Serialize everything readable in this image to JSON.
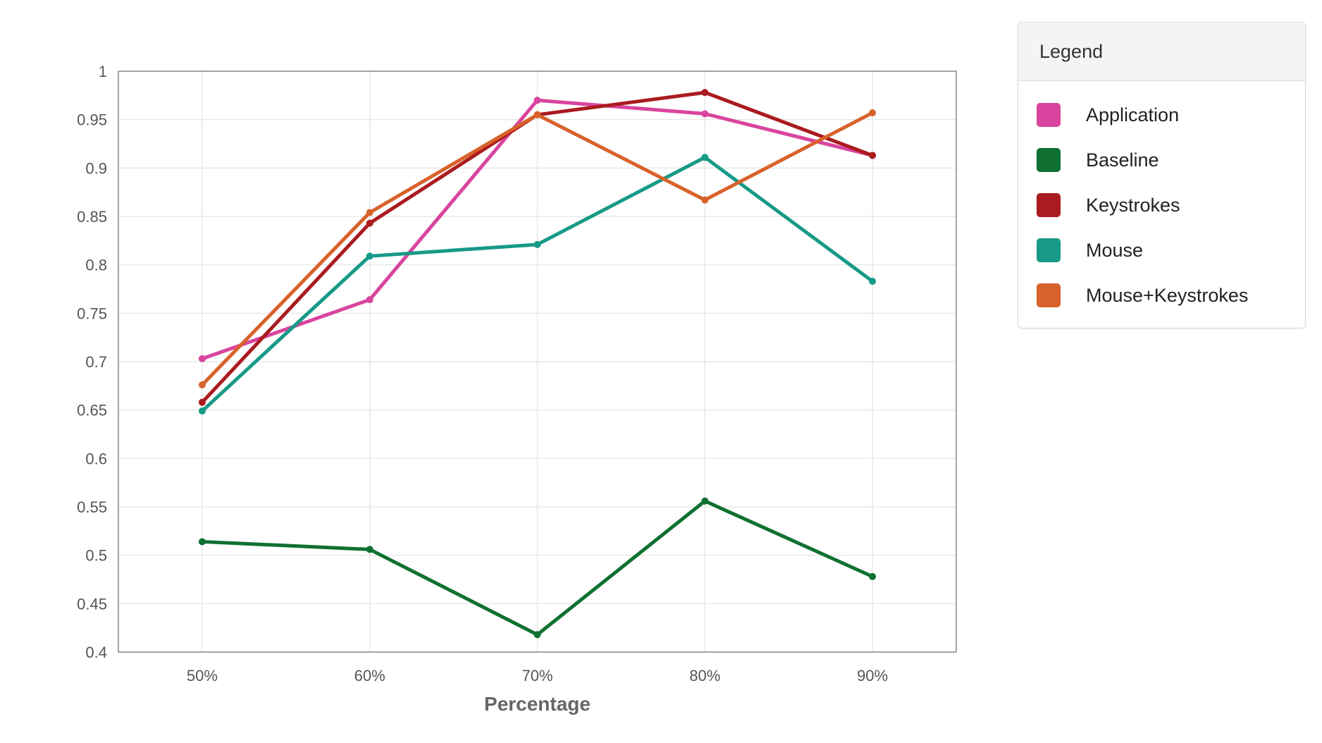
{
  "chart_data": {
    "type": "line",
    "title": "",
    "xlabel": "Percentage",
    "ylabel": "",
    "categories": [
      "50%",
      "60%",
      "70%",
      "80%",
      "90%"
    ],
    "ylim": [
      0.4,
      1
    ],
    "yticks": [
      "0.4",
      "0.45",
      "0.5",
      "0.55",
      "0.6",
      "0.65",
      "0.7",
      "0.75",
      "0.8",
      "0.85",
      "0.9",
      "0.95",
      "1"
    ],
    "grid": true,
    "legend_position": "right",
    "series": [
      {
        "name": "Application",
        "color": "#d9449e",
        "values": [
          0.703,
          0.764,
          0.97,
          0.956,
          0.913
        ]
      },
      {
        "name": "Baseline",
        "color": "#0f7031",
        "values": [
          0.514,
          0.506,
          0.418,
          0.556,
          0.478
        ]
      },
      {
        "name": "Keystrokes",
        "color": "#aa1b1f",
        "values": [
          0.658,
          0.843,
          0.955,
          0.978,
          0.913
        ]
      },
      {
        "name": "Mouse",
        "color": "#179a87",
        "values": [
          0.649,
          0.809,
          0.821,
          0.911,
          0.783
        ]
      },
      {
        "name": "Mouse+Keystrokes",
        "color": "#d8622b",
        "values": [
          0.676,
          0.854,
          0.955,
          0.867,
          0.957
        ]
      }
    ]
  },
  "legend": {
    "title": "Legend"
  }
}
